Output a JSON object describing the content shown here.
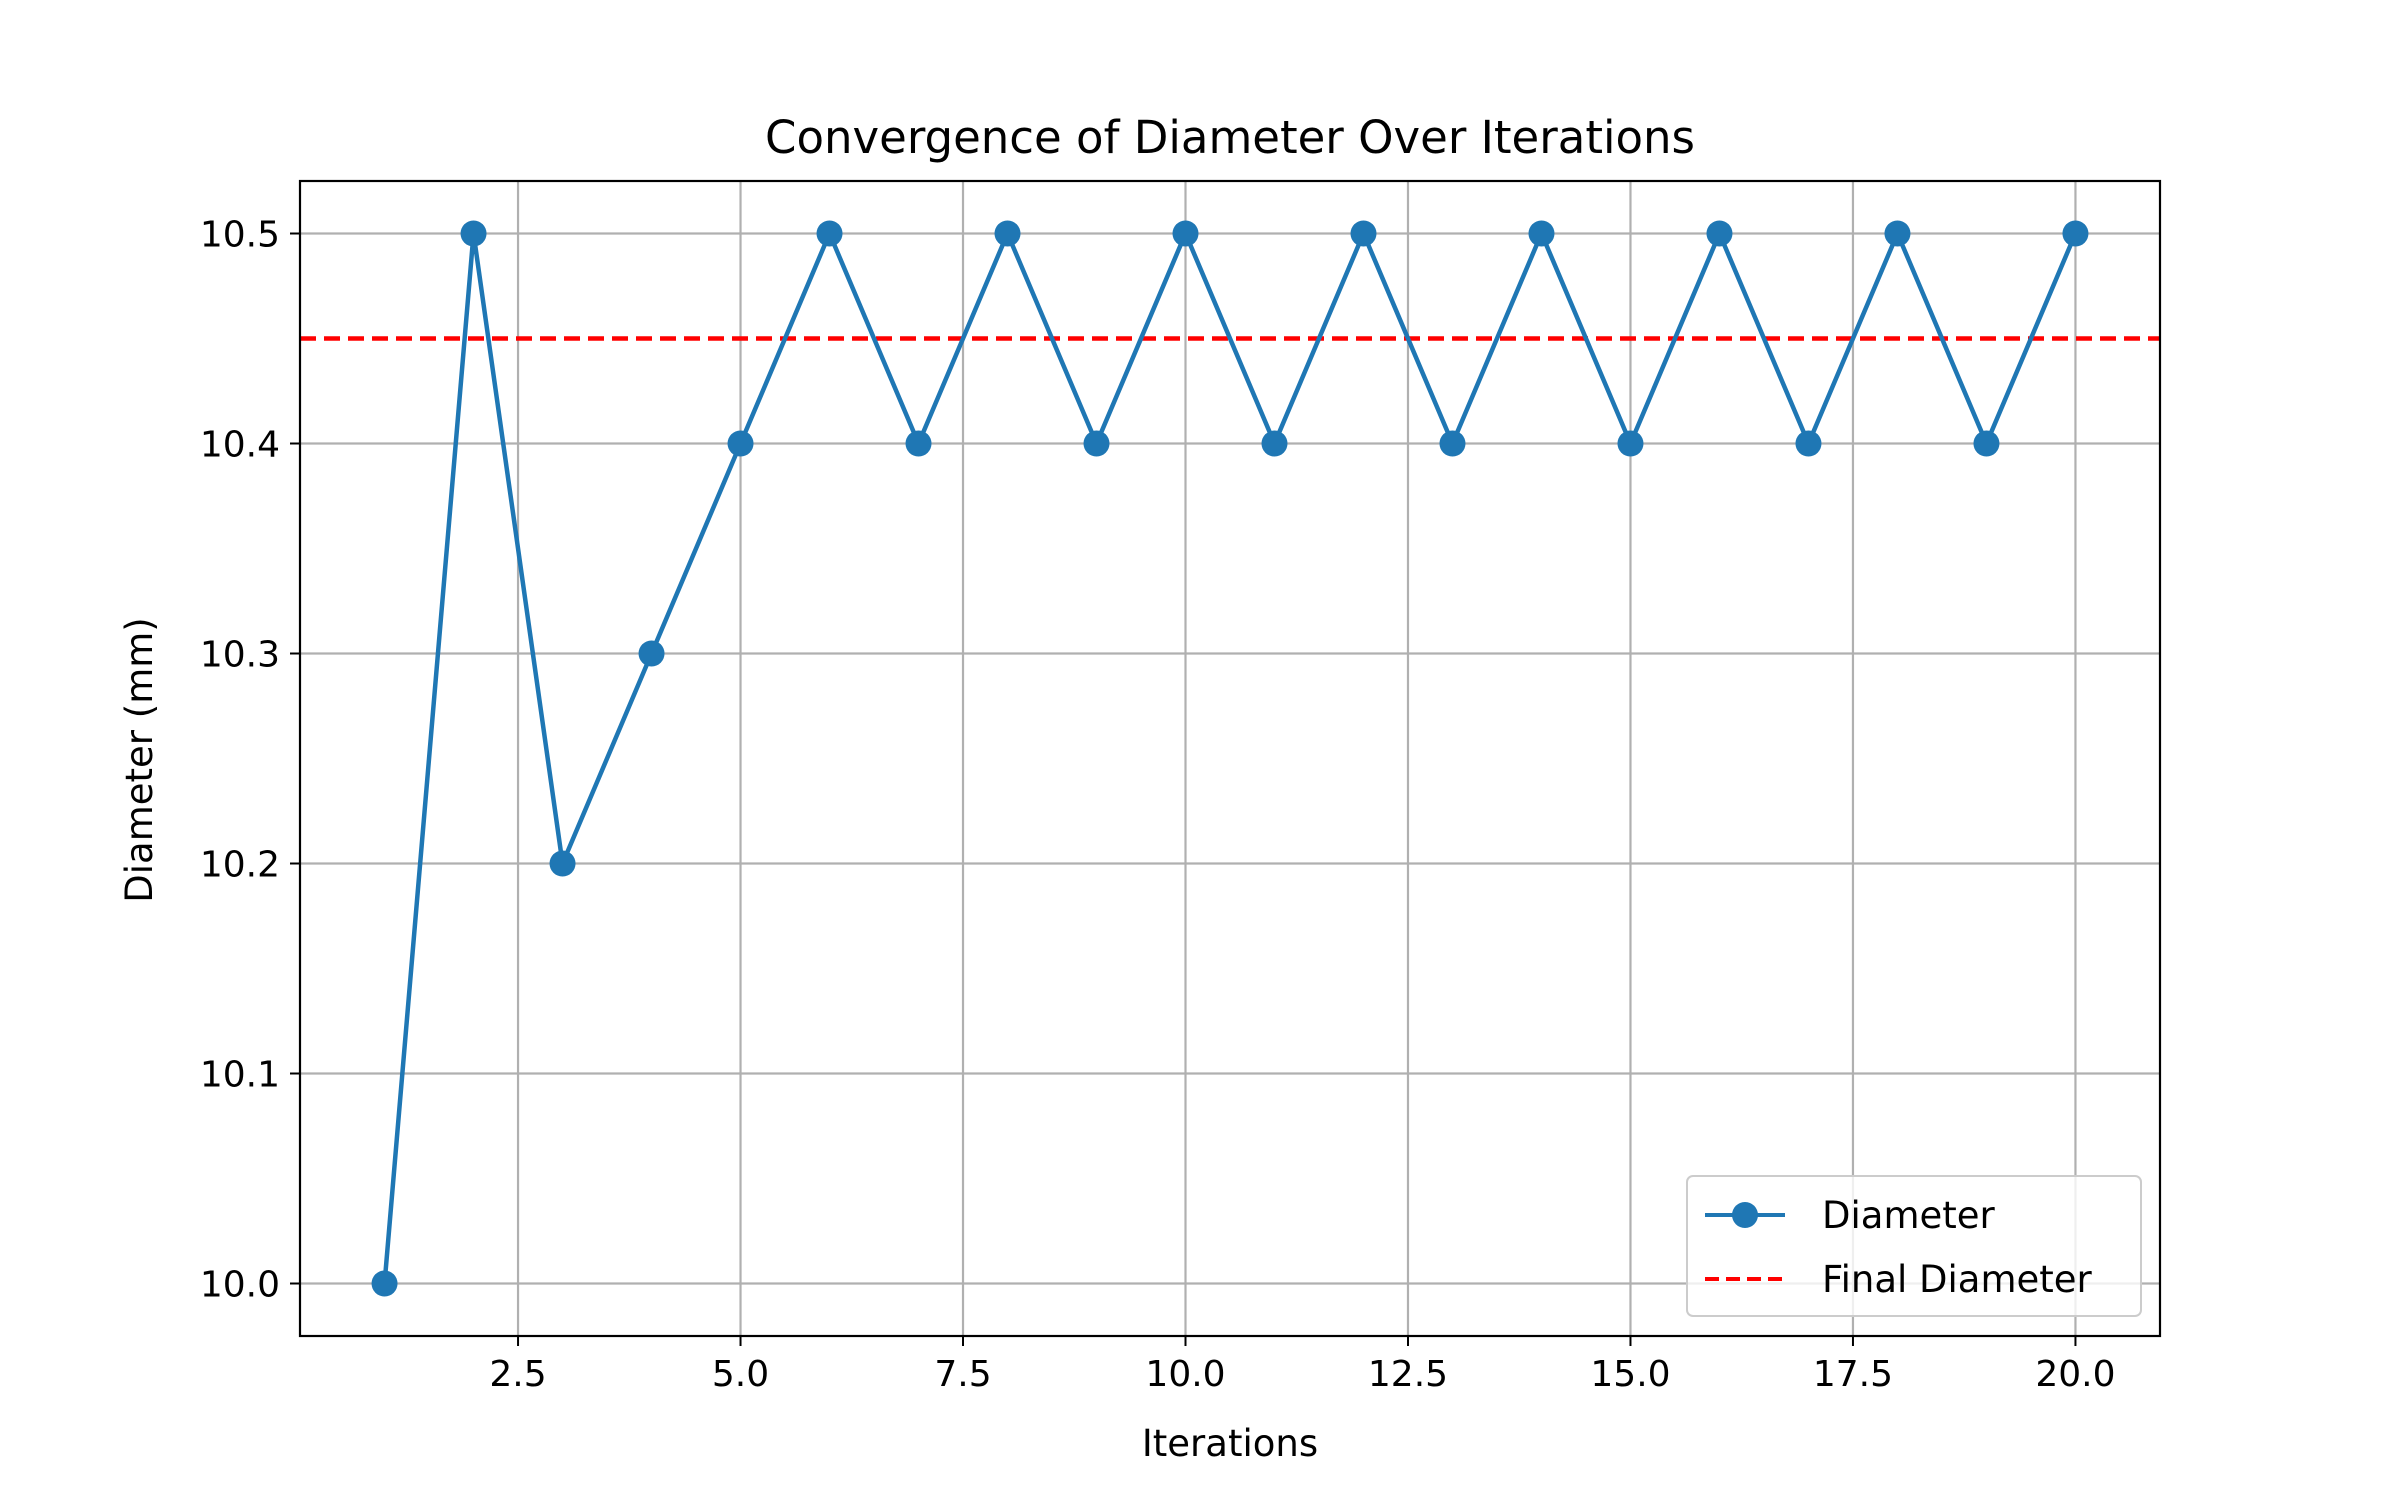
{
  "chart_data": {
    "type": "line",
    "title": "Convergence of Diameter Over Iterations",
    "xlabel": "Iterations",
    "ylabel": "Diameter (mm)",
    "xlim": [
      0.05,
      20.95
    ],
    "ylim": [
      9.975,
      10.525
    ],
    "xticks": [
      2.5,
      5.0,
      7.5,
      10.0,
      12.5,
      15.0,
      17.5,
      20.0
    ],
    "xtick_labels": [
      "2.5",
      "5.0",
      "7.5",
      "10.0",
      "12.5",
      "15.0",
      "17.5",
      "20.0"
    ],
    "yticks": [
      10.0,
      10.1,
      10.2,
      10.3,
      10.4,
      10.5
    ],
    "ytick_labels": [
      "10.0",
      "10.1",
      "10.2",
      "10.3",
      "10.4",
      "10.5"
    ],
    "grid": true,
    "legend_position": "lower right",
    "x": [
      1,
      2,
      3,
      4,
      5,
      6,
      7,
      8,
      9,
      10,
      11,
      12,
      13,
      14,
      15,
      16,
      17,
      18,
      19,
      20
    ],
    "series": [
      {
        "name": "Diameter",
        "values": [
          10.0,
          10.5,
          10.2,
          10.3,
          10.4,
          10.5,
          10.4,
          10.5,
          10.4,
          10.5,
          10.4,
          10.5,
          10.4,
          10.5,
          10.4,
          10.5,
          10.4,
          10.5,
          10.4,
          10.5
        ],
        "color": "#1f77b4",
        "style": "solid",
        "marker": "circle"
      }
    ],
    "reference_lines": [
      {
        "name": "Final Diameter",
        "y": 10.45,
        "color": "#ff0000",
        "style": "dashed"
      }
    ]
  }
}
